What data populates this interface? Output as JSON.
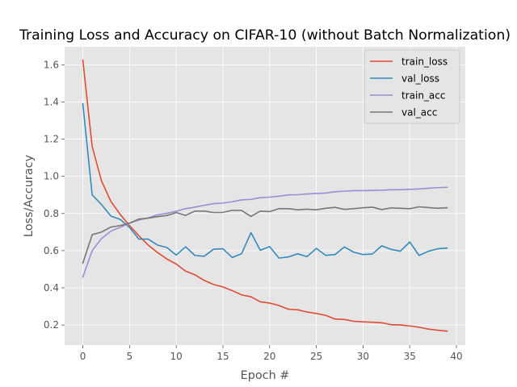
{
  "chart_data": {
    "type": "line",
    "title": "Training Loss and Accuracy on CIFAR-10 (without Batch Normalization)",
    "xlabel": "Epoch #",
    "ylabel": "Loss/Accuracy",
    "xlim": [
      -1.95,
      40.95
    ],
    "ylim": [
      0.092,
      1.697
    ],
    "xticks": [
      0,
      5,
      10,
      15,
      20,
      25,
      30,
      35,
      40
    ],
    "yticks": [
      0.2,
      0.4,
      0.6,
      0.8,
      1.0,
      1.2,
      1.4,
      1.6
    ],
    "xtick_labels": [
      "0",
      "5",
      "10",
      "15",
      "20",
      "25",
      "30",
      "35",
      "40"
    ],
    "ytick_labels": [
      "0.2",
      "0.4",
      "0.6",
      "0.8",
      "1.0",
      "1.2",
      "1.4",
      "1.6"
    ],
    "grid": true,
    "style": "ggplot",
    "legend_position": "top-right",
    "x": [
      0,
      1,
      2,
      3,
      4,
      5,
      6,
      7,
      8,
      9,
      10,
      11,
      12,
      13,
      14,
      15,
      16,
      17,
      18,
      19,
      20,
      21,
      22,
      23,
      24,
      25,
      26,
      27,
      28,
      29,
      30,
      31,
      32,
      33,
      34,
      35,
      36,
      37,
      38,
      39
    ],
    "series": [
      {
        "name": "train_loss",
        "color": "#E24A33",
        "values": [
          1.625,
          1.16,
          0.975,
          0.865,
          0.795,
          0.735,
          0.68,
          0.63,
          0.59,
          0.555,
          0.528,
          0.49,
          0.47,
          0.44,
          0.418,
          0.405,
          0.385,
          0.362,
          0.352,
          0.325,
          0.318,
          0.305,
          0.285,
          0.282,
          0.27,
          0.262,
          0.252,
          0.232,
          0.23,
          0.22,
          0.217,
          0.215,
          0.212,
          0.202,
          0.2,
          0.195,
          0.188,
          0.178,
          0.172,
          0.167
        ]
      },
      {
        "name": "val_loss",
        "color": "#348ABD",
        "values": [
          1.39,
          0.9,
          0.848,
          0.786,
          0.768,
          0.725,
          0.662,
          0.662,
          0.63,
          0.617,
          0.576,
          0.621,
          0.574,
          0.57,
          0.608,
          0.61,
          0.563,
          0.584,
          0.697,
          0.602,
          0.622,
          0.56,
          0.566,
          0.583,
          0.568,
          0.612,
          0.575,
          0.579,
          0.62,
          0.592,
          0.579,
          0.582,
          0.626,
          0.607,
          0.597,
          0.647,
          0.574,
          0.597,
          0.61,
          0.614
        ]
      },
      {
        "name": "train_acc",
        "color": "#988ED5",
        "values": [
          0.458,
          0.6,
          0.665,
          0.705,
          0.726,
          0.748,
          0.765,
          0.776,
          0.793,
          0.801,
          0.812,
          0.826,
          0.834,
          0.844,
          0.853,
          0.856,
          0.863,
          0.873,
          0.876,
          0.885,
          0.888,
          0.893,
          0.9,
          0.901,
          0.905,
          0.908,
          0.91,
          0.917,
          0.92,
          0.923,
          0.923,
          0.924,
          0.925,
          0.928,
          0.928,
          0.93,
          0.932,
          0.936,
          0.939,
          0.941
        ]
      },
      {
        "name": "val_acc",
        "color": "#777777",
        "values": [
          0.533,
          0.686,
          0.7,
          0.727,
          0.735,
          0.748,
          0.77,
          0.775,
          0.783,
          0.789,
          0.805,
          0.79,
          0.813,
          0.813,
          0.805,
          0.806,
          0.817,
          0.816,
          0.784,
          0.813,
          0.81,
          0.826,
          0.826,
          0.82,
          0.823,
          0.82,
          0.828,
          0.833,
          0.822,
          0.826,
          0.831,
          0.834,
          0.821,
          0.83,
          0.828,
          0.826,
          0.836,
          0.832,
          0.828,
          0.831
        ]
      }
    ]
  }
}
